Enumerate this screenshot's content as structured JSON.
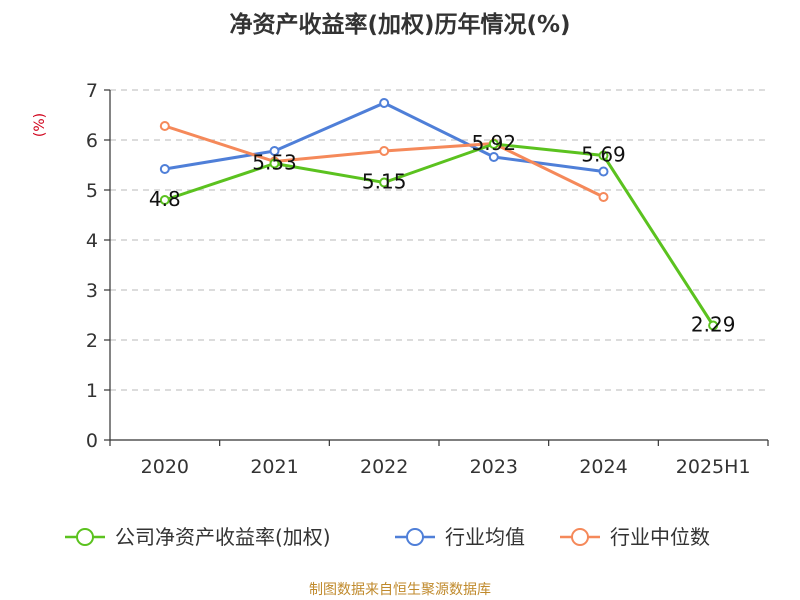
{
  "chart_data": {
    "type": "line",
    "title": "净资产收益率(加权)历年情况(%)",
    "ylabel": "(%)",
    "xlabel": "",
    "categories": [
      "2020",
      "2021",
      "2022",
      "2023",
      "2024",
      "2025H1"
    ],
    "ylim": [
      0,
      7
    ],
    "yticks": [
      0,
      1,
      2,
      3,
      4,
      5,
      6,
      7
    ],
    "grid": "horizontal-dashed",
    "legend_position": "bottom",
    "series": [
      {
        "name": "公司净资产收益率(加权)",
        "color": "#5bc21f",
        "values": [
          4.8,
          5.53,
          5.15,
          5.92,
          5.69,
          2.29
        ],
        "labels": [
          "4.8",
          "5.53",
          "5.15",
          "5.92",
          "5.69",
          "2.29"
        ]
      },
      {
        "name": "行业均值",
        "color": "#4f7fd8",
        "values": [
          5.42,
          5.78,
          6.74,
          5.66,
          5.37,
          null
        ]
      },
      {
        "name": "行业中位数",
        "color": "#f5895a",
        "values": [
          6.28,
          5.57,
          5.78,
          5.93,
          4.86,
          null
        ]
      }
    ],
    "source": "制图数据来自恒生聚源数据库"
  },
  "colors": {
    "axis": "#333333",
    "grid": "#c8c8c8",
    "ylabel": "#d0021b",
    "source": "#c08a2c"
  }
}
